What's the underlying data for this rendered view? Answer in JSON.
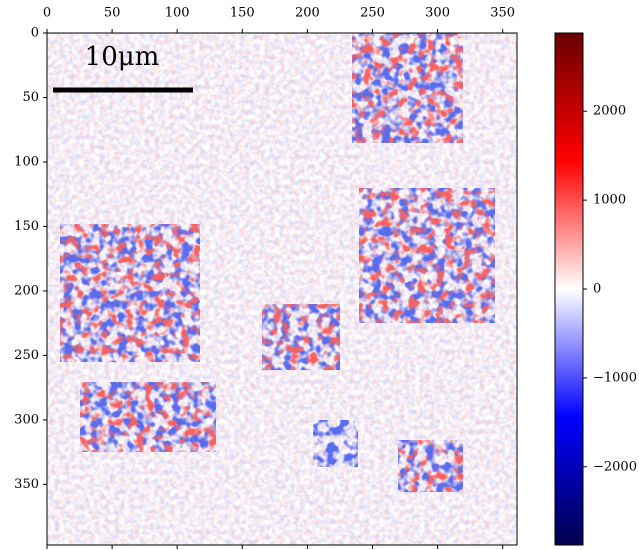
{
  "chart_data": {
    "type": "heatmap",
    "xlim": [
      0,
      361
    ],
    "ylim": [
      0,
      397
    ],
    "y_inverted": true,
    "x_axis_side": "top",
    "xticks": [
      0,
      50,
      100,
      150,
      200,
      250,
      300,
      350
    ],
    "yticks": [
      0,
      50,
      100,
      150,
      200,
      250,
      300,
      350
    ],
    "annotation": "10μm",
    "colorbar": {
      "lim": [
        -2880,
        2880
      ],
      "ticks": [
        {
          "value": -2000,
          "label": "−2000"
        },
        {
          "value": -1000,
          "label": "−1000"
        },
        0,
        1000,
        2000
      ]
    }
  }
}
